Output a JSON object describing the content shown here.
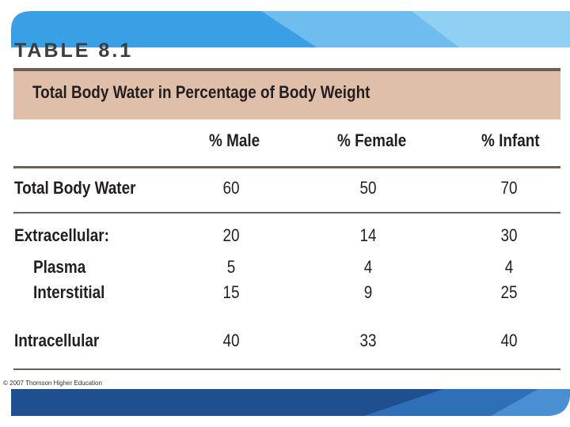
{
  "heading": "TABLE 8.1",
  "title": "Total Body Water in Percentage of Body Weight",
  "columns": [
    "% Male",
    "% Female",
    "% Infant"
  ],
  "rows": [
    {
      "label": "Total Body Water",
      "male": "60",
      "female": "50",
      "infant": "70"
    },
    {
      "label": "Extracellular:",
      "male": "20",
      "female": "14",
      "infant": "30"
    },
    {
      "label": "Plasma",
      "male": "5",
      "female": "4",
      "infant": "4"
    },
    {
      "label": "Interstitial",
      "male": "15",
      "female": "9",
      "infant": "25"
    },
    {
      "label": "Intracellular",
      "male": "40",
      "female": "33",
      "infant": "40"
    }
  ],
  "copyright": "© 2007 Thomson Higher Education",
  "colors": {
    "band_light": "#7cc4ee",
    "band_mid": "#3aa0e6",
    "band_dark": "#1f4f8f",
    "title_fill": "#dfbfaa",
    "rule": "#6c6158"
  }
}
